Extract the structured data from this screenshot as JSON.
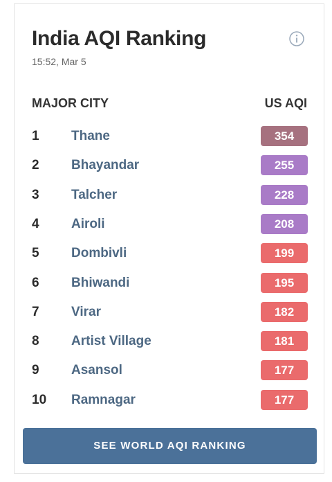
{
  "header": {
    "title": "India AQI Ranking",
    "timestamp": "15:52, Mar 5"
  },
  "table": {
    "columns": [
      "MAJOR CITY",
      "US AQI"
    ],
    "rows": [
      {
        "rank": 1,
        "city": "Thane",
        "aqi": 354,
        "color": "#a6717f"
      },
      {
        "rank": 2,
        "city": "Bhayandar",
        "aqi": 255,
        "color": "#a97bc7"
      },
      {
        "rank": 3,
        "city": "Talcher",
        "aqi": 228,
        "color": "#a97bc7"
      },
      {
        "rank": 4,
        "city": "Airoli",
        "aqi": 208,
        "color": "#a97bc7"
      },
      {
        "rank": 5,
        "city": "Dombivli",
        "aqi": 199,
        "color": "#ea6b6c"
      },
      {
        "rank": 6,
        "city": "Bhiwandi",
        "aqi": 195,
        "color": "#ea6b6c"
      },
      {
        "rank": 7,
        "city": "Virar",
        "aqi": 182,
        "color": "#ea6b6c"
      },
      {
        "rank": 8,
        "city": "Artist Village",
        "aqi": 181,
        "color": "#ea6b6c"
      },
      {
        "rank": 9,
        "city": "Asansol",
        "aqi": 177,
        "color": "#ea6b6c"
      },
      {
        "rank": 10,
        "city": "Ramnagar",
        "aqi": 177,
        "color": "#ea6b6c"
      }
    ]
  },
  "button": {
    "label": "SEE WORLD AQI RANKING"
  }
}
